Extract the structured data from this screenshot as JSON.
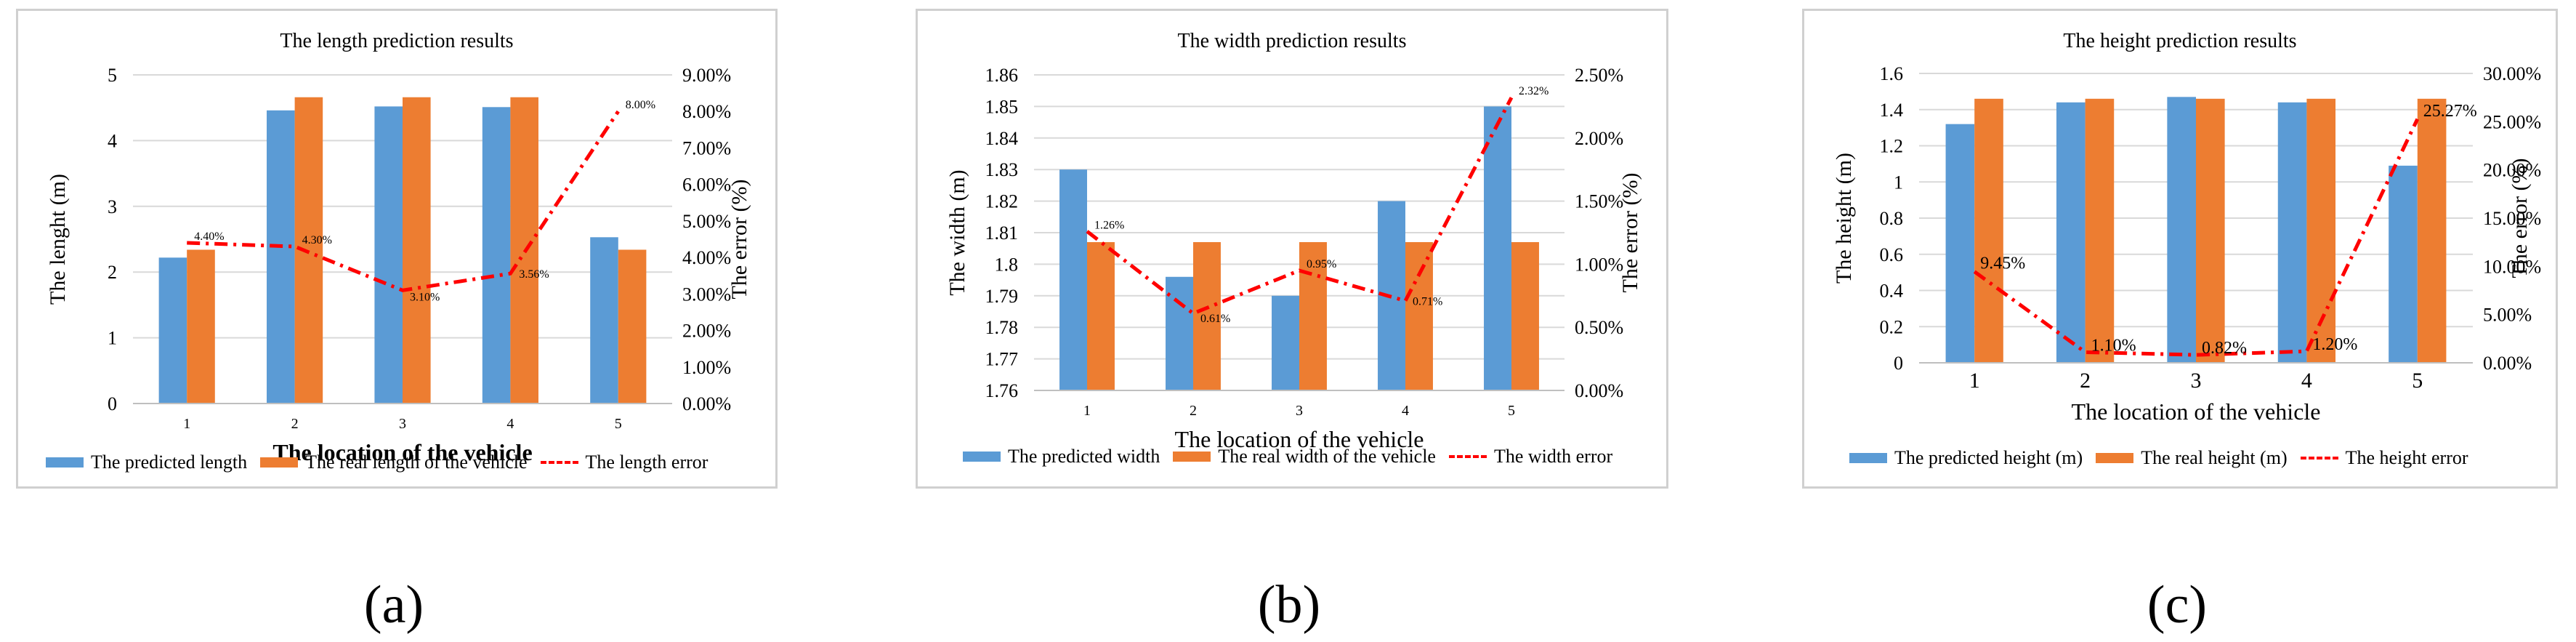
{
  "colors": {
    "predicted": "#5b9bd5",
    "real": "#ed7d31",
    "error": "#ff0000",
    "grid": "#d9d9d9"
  },
  "captions": [
    "(a)",
    "(b)",
    "(c)"
  ],
  "chart_data": [
    {
      "type": "bar",
      "title": "The length prediction results",
      "xlabel": "The location of the vehicle",
      "ylabel": "The lenght (m)",
      "y2label": "The error (%)",
      "categories": [
        "1",
        "2",
        "3",
        "4",
        "5"
      ],
      "ylim": [
        0,
        5
      ],
      "yticks": [
        "0",
        "1",
        "2",
        "3",
        "4",
        "5"
      ],
      "y2lim": [
        0,
        9
      ],
      "y2ticks": [
        "0.00%",
        "1.00%",
        "2.00%",
        "3.00%",
        "4.00%",
        "5.00%",
        "6.00%",
        "7.00%",
        "8.00%",
        "9.00%"
      ],
      "series": [
        {
          "name": "The predicted length",
          "values": [
            2.22,
            4.46,
            4.52,
            4.51,
            2.53
          ]
        },
        {
          "name": "The real length of the vehicle",
          "values": [
            2.34,
            4.66,
            4.66,
            4.66,
            2.34
          ]
        }
      ],
      "line": {
        "name": "The length error",
        "values": [
          4.4,
          4.3,
          3.1,
          3.56,
          8.0
        ],
        "labels": [
          "4.40%",
          "4.30%",
          "3.10%",
          "3.56%",
          "8.00%"
        ]
      }
    },
    {
      "type": "bar",
      "title": "The width prediction results",
      "xlabel": "The location of the vehicle",
      "ylabel": "The width (m)",
      "y2label": "The error (%)",
      "categories": [
        "1",
        "2",
        "3",
        "4",
        "5"
      ],
      "ylim": [
        1.76,
        1.86
      ],
      "yticks": [
        "1.76",
        "1.77",
        "1.78",
        "1.79",
        "1.8",
        "1.81",
        "1.82",
        "1.83",
        "1.84",
        "1.85",
        "1.86"
      ],
      "y2lim": [
        0,
        2.5
      ],
      "y2ticks": [
        "0.00%",
        "0.50%",
        "1.00%",
        "1.50%",
        "2.00%",
        "2.50%"
      ],
      "series": [
        {
          "name": "The predicted width",
          "values": [
            1.83,
            1.796,
            1.79,
            1.82,
            1.85
          ]
        },
        {
          "name": "The real width of the vehicle",
          "values": [
            1.807,
            1.807,
            1.807,
            1.807,
            1.807
          ]
        }
      ],
      "line": {
        "name": "The width error",
        "values": [
          1.26,
          0.61,
          0.95,
          0.71,
          2.32
        ],
        "labels": [
          "1.26%",
          "0.61%",
          "0.95%",
          "0.71%",
          "2.32%"
        ]
      }
    },
    {
      "type": "bar",
      "title": "The height prediction results",
      "xlabel": "The location of the vehicle",
      "ylabel": "The height (m)",
      "y2label": "The error (%)",
      "categories": [
        "1",
        "2",
        "3",
        "4",
        "5"
      ],
      "ylim": [
        0,
        1.6
      ],
      "yticks": [
        "0",
        "0.2",
        "0.4",
        "0.6",
        "0.8",
        "1",
        "1.2",
        "1.4",
        "1.6"
      ],
      "y2lim": [
        0,
        30
      ],
      "y2ticks": [
        "0.00%",
        "5.00%",
        "10.00%",
        "15.00%",
        "20.00%",
        "25.00%",
        "30.00%"
      ],
      "series": [
        {
          "name": "The predicted height (m)",
          "values": [
            1.32,
            1.44,
            1.47,
            1.44,
            1.09
          ]
        },
        {
          "name": "The real height (m)",
          "values": [
            1.46,
            1.46,
            1.46,
            1.46,
            1.46
          ]
        }
      ],
      "line": {
        "name": "The height error",
        "values": [
          9.45,
          1.1,
          0.82,
          1.2,
          25.27
        ],
        "labels": [
          "9.45%",
          "1.10%",
          "0.82%",
          "1.20%",
          "25.27%"
        ]
      }
    }
  ]
}
